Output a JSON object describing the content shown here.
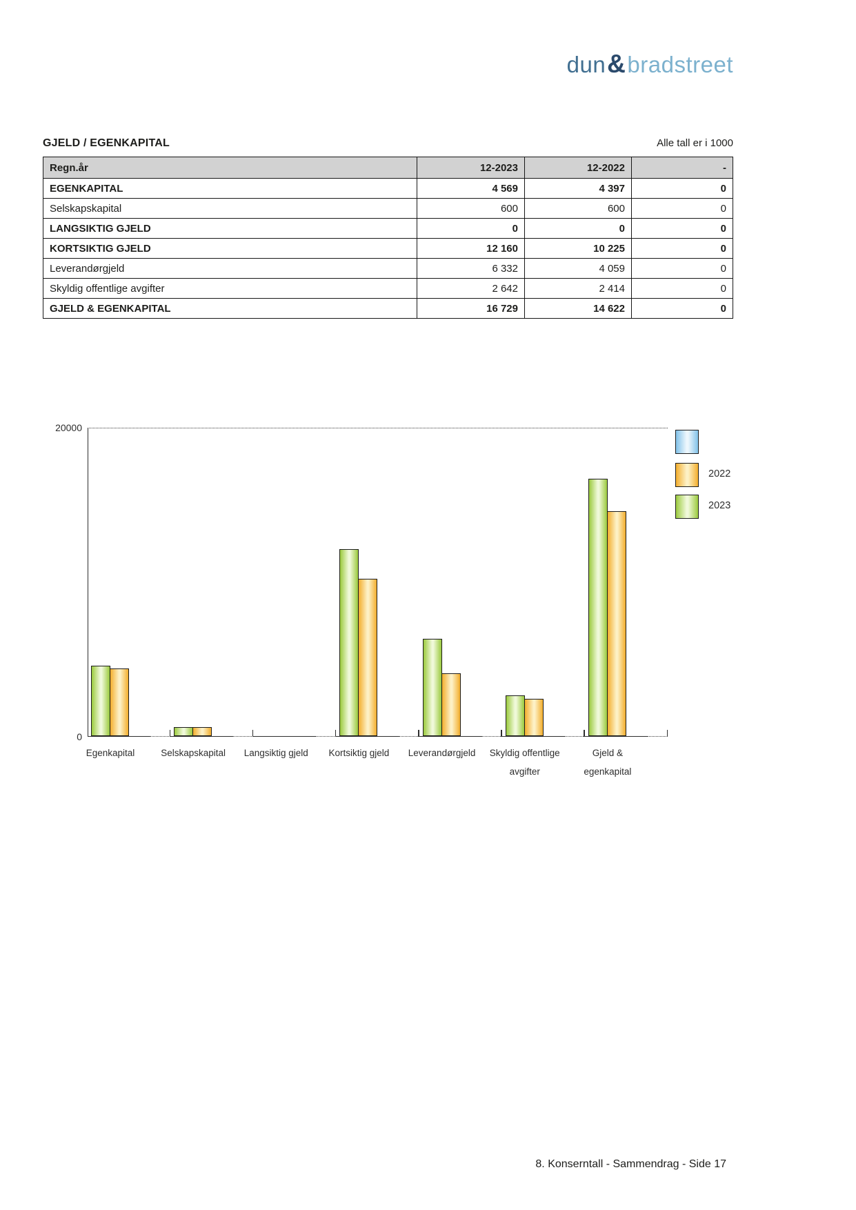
{
  "logo": {
    "word1": "dun",
    "ampersand": "&",
    "word2": "bradstreet",
    "word1_color": "#416f91",
    "ampersand_color": "#2b4a6c",
    "word2_color": "#7cb1ce"
  },
  "header": {
    "title": "GJELD / EGENKAPITAL",
    "note": "Alle tall er i 1000"
  },
  "table": {
    "columns": [
      {
        "label": "Regn.år",
        "align": "left"
      },
      {
        "label": "12-2023",
        "align": "right"
      },
      {
        "label": "12-2022",
        "align": "right"
      },
      {
        "label": "-",
        "align": "right"
      }
    ],
    "rows": [
      {
        "label": "EGENKAPITAL",
        "bold": true,
        "values": [
          "4 569",
          "4 397",
          "0"
        ]
      },
      {
        "label": "Selskapskapital",
        "bold": false,
        "values": [
          "600",
          "600",
          "0"
        ]
      },
      {
        "label": "LANGSIKTIG GJELD",
        "bold": true,
        "values": [
          "0",
          "0",
          "0"
        ]
      },
      {
        "label": "KORTSIKTIG GJELD",
        "bold": true,
        "values": [
          "12 160",
          "10 225",
          "0"
        ]
      },
      {
        "label": "Leverandørgjeld",
        "bold": false,
        "values": [
          "6 332",
          "4 059",
          "0"
        ]
      },
      {
        "label": "Skyldig offentlige avgifter",
        "bold": false,
        "values": [
          "2 642",
          "2 414",
          "0"
        ]
      },
      {
        "label": "GJELD & EGENKAPITAL",
        "bold": true,
        "values": [
          "16 729",
          "14 622",
          "0"
        ]
      }
    ]
  },
  "chart_data": {
    "type": "bar",
    "title": "",
    "categories": [
      [
        "Egenkapital"
      ],
      [
        "Selskapskapital"
      ],
      [
        "Langsiktig gjeld"
      ],
      [
        "Kortsiktig gjeld"
      ],
      [
        "Leverandørgjeld"
      ],
      [
        "Skyldig offentlige",
        "avgifter"
      ],
      [
        "Gjeld &",
        "egenkapital"
      ]
    ],
    "series": [
      {
        "name": "2023",
        "values": [
          4569,
          600,
          0,
          12160,
          6332,
          2642,
          16729
        ],
        "edge_color": "#9bca3e",
        "mid_color": "#f0f9da"
      },
      {
        "name": "2022",
        "values": [
          4397,
          600,
          0,
          10225,
          4059,
          2414,
          14622
        ],
        "edge_color": "#f3ae2d",
        "mid_color": "#fdf1c6"
      }
    ],
    "legend": [
      {
        "label": "",
        "edge_color": "#82c2e9",
        "mid_color": "#edf7fd"
      },
      {
        "label": "2022",
        "edge_color": "#f3ae2d",
        "mid_color": "#fdf1c6"
      },
      {
        "label": "2023",
        "edge_color": "#9bca3e",
        "mid_color": "#f0f9da"
      }
    ],
    "legend_position": "top-right",
    "ylim": [
      0,
      20000
    ],
    "yticks": [
      {
        "value": 20000,
        "label": "20000"
      },
      {
        "value": 0,
        "label": "0"
      }
    ],
    "grid": "dotted line at y-max only, dotted baseline segments with ticks between categories",
    "xlabel": "",
    "ylabel": ""
  },
  "footer": {
    "text": "8. Konserntall - Sammendrag - Side 17"
  }
}
